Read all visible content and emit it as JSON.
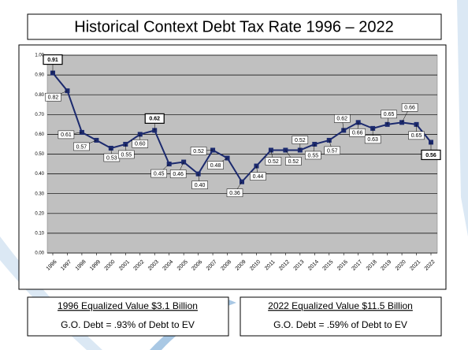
{
  "chart_data": {
    "type": "line",
    "title": "Historical Context Debt Tax Rate 1996 – 2022",
    "categories": [
      "1996",
      "1997",
      "1998",
      "1999",
      "2000",
      "2001",
      "2002",
      "2003",
      "2004",
      "2005",
      "2006",
      "2007",
      "2008",
      "2009",
      "2010",
      "2011",
      "2012",
      "2013",
      "2014",
      "2015",
      "2016",
      "2017",
      "2018",
      "2019",
      "2020",
      "2021",
      "2022"
    ],
    "series": [
      {
        "color": "#1c2a6e",
        "values": [
          0.91,
          0.82,
          0.61,
          0.57,
          0.53,
          0.55,
          0.6,
          0.62,
          0.45,
          0.46,
          0.4,
          0.52,
          0.48,
          0.36,
          0.44,
          0.52,
          0.52,
          0.52,
          0.55,
          0.57,
          0.62,
          0.66,
          0.63,
          0.65,
          0.66,
          0.65,
          0.56
        ],
        "value_labels": [
          "0.91",
          "0.82",
          "0.61",
          "0.57",
          "0.53",
          "0.55",
          "0.60",
          "0.62",
          "0.45",
          "0.46",
          "0.40",
          "0.52",
          "0.48",
          "0.36",
          "0.44",
          "0.52",
          "0.52",
          "0.52",
          "0.55",
          "0.57",
          "0.62",
          "0.66",
          "0.63",
          "0.65",
          "0.66",
          "0.65",
          "0.56"
        ]
      }
    ],
    "ylim": [
      0,
      1
    ],
    "yticks": [
      {
        "value": 0,
        "label": "0.00"
      },
      {
        "value": 0.1,
        "label": "0.10"
      },
      {
        "value": 0.2,
        "label": "0.20"
      },
      {
        "value": 0.3,
        "label": "0.30"
      },
      {
        "value": 0.4,
        "label": "0.40"
      },
      {
        "value": 0.5,
        "label": "0.50"
      },
      {
        "value": 0.6,
        "label": "0.60"
      },
      {
        "value": 0.7,
        "label": "0.70"
      },
      {
        "value": 0.8,
        "label": "0.80"
      },
      {
        "value": 0.9,
        "label": "0.90"
      },
      {
        "value": 1,
        "label": "1.00"
      }
    ],
    "grid": true
  },
  "footer": [
    {
      "title": "1996 Equalized Value $3.1 Billion",
      "text": "G.O. Debt = .93% of Debt to EV"
    },
    {
      "title": "2022 Equalized Value $11.5 Billion",
      "text": "G.O. Debt = .59% of Debt to EV"
    }
  ]
}
